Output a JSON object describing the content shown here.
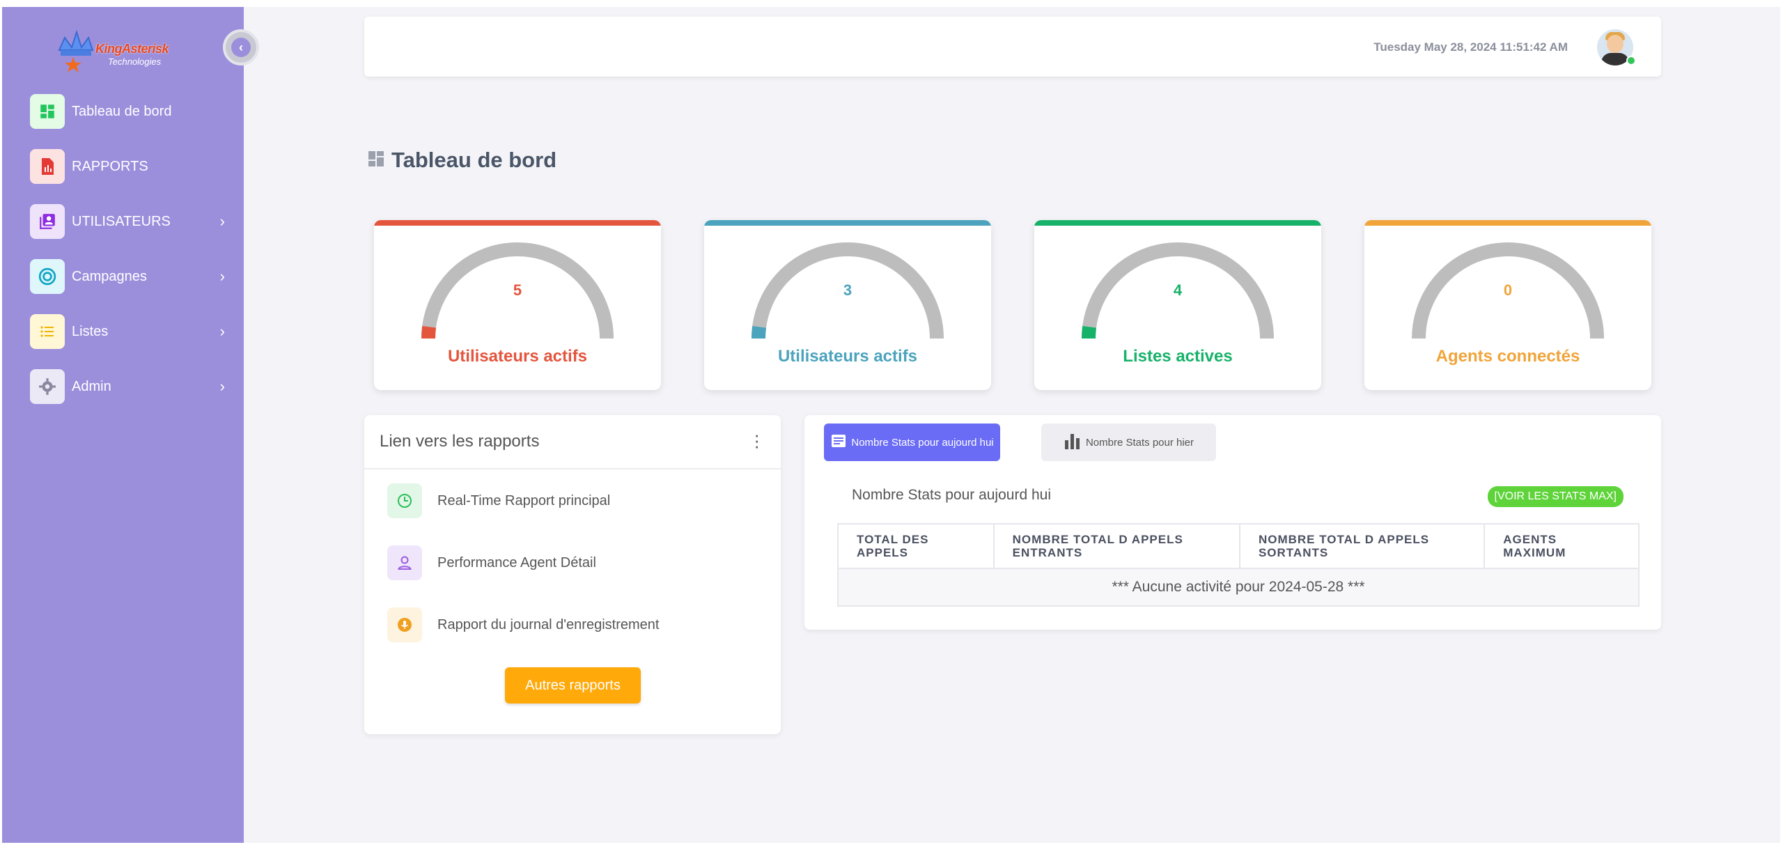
{
  "brand": {
    "logo_text": "KingAsterisk",
    "logo_sub": "Technologies",
    "accent_color": "#9b8fdc"
  },
  "sidebar": {
    "items": [
      {
        "label": "Tableau de bord",
        "icon": "dashboard-icon",
        "has_submenu": false
      },
      {
        "label": "RAPPORTS",
        "icon": "report-file-icon",
        "has_submenu": false
      },
      {
        "label": "UTILISATEURS",
        "icon": "users-icon",
        "has_submenu": true
      },
      {
        "label": "Campagnes",
        "icon": "target-icon",
        "has_submenu": true
      },
      {
        "label": "Listes",
        "icon": "list-icon",
        "has_submenu": true
      },
      {
        "label": "Admin",
        "icon": "gear-icon",
        "has_submenu": true
      }
    ],
    "collapse_icon": "chevron-left-icon"
  },
  "header": {
    "datetime": "Tuesday May 28, 2024 11:51:42 AM",
    "avatar_status": "online"
  },
  "page": {
    "title": "Tableau de bord",
    "title_icon": "dashboard-icon"
  },
  "gauges": [
    {
      "value": "5",
      "caption": "Utilisateurs actifs",
      "color": "#e4553d"
    },
    {
      "value": "3",
      "caption": "Utilisateurs actifs",
      "color": "#4ba3bd"
    },
    {
      "value": "4",
      "caption": "Listes actives",
      "color": "#17b26a"
    },
    {
      "value": "0",
      "caption": "Agents connectés",
      "color": "#f0a43a"
    }
  ],
  "reports": {
    "title": "Lien vers les rapports",
    "menu_icon": "kebab-menu-icon",
    "items": [
      {
        "label": "Real-Time Rapport principal",
        "icon": "clock-pie-icon",
        "color": "#2bbf5b",
        "bg": "#e3f7e8"
      },
      {
        "label": "Performance Agent Détail",
        "icon": "user-icon",
        "color": "#9a5ce0",
        "bg": "#efe6fb"
      },
      {
        "label": "Rapport du journal d'enregistrement",
        "icon": "microphone-icon",
        "color": "#f0a020",
        "bg": "#fdf3df"
      }
    ],
    "button_label": "Autres rapports"
  },
  "stats": {
    "tabs": [
      {
        "label": "Nombre Stats pour aujourd hui",
        "icon": "document-icon",
        "active": true
      },
      {
        "label": "Nombre Stats pour hier",
        "icon": "bar-chart-icon",
        "active": false
      }
    ],
    "heading": "Nombre Stats pour aujourd hui",
    "max_button": "[VOIR LES STATS MAX]",
    "columns": [
      "TOTAL DES APPELS",
      "NOMBRE TOTAL D APPELS ENTRANTS",
      "NOMBRE TOTAL D APPELS SORTANTS",
      "AGENTS MAXIMUM"
    ],
    "empty_message": "*** Aucune activité pour 2024-05-28 ***"
  }
}
